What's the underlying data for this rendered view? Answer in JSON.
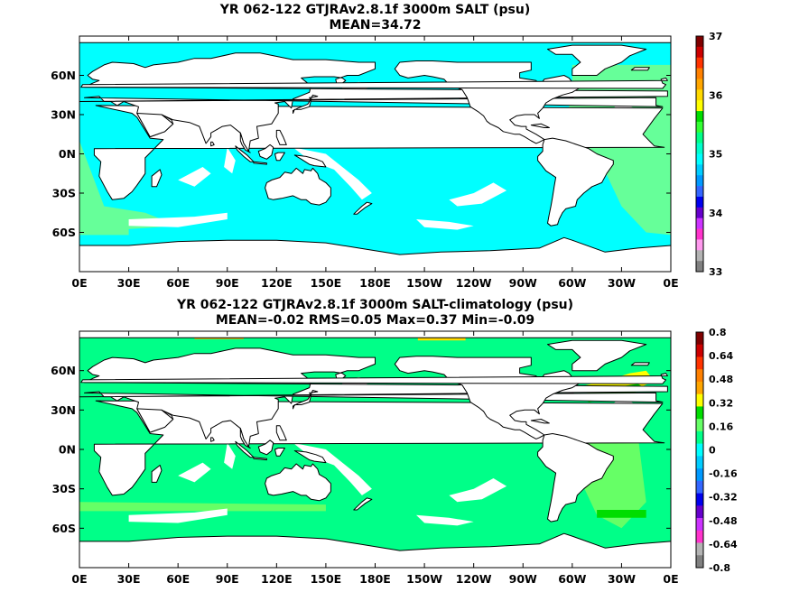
{
  "panels": [
    {
      "title_line1": "YR 062-122 GTJRAv2.8.1f 3000m SALT (psu)",
      "title_line2": "MEAN=34.72",
      "colorbar_labels": [
        "37",
        "36",
        "35",
        "34",
        "33"
      ],
      "colorbar_colors": [
        "#7f0000",
        "#cc0000",
        "#ff3300",
        "#ff8000",
        "#ffa600",
        "#ffd900",
        "#ffff00",
        "#00dd00",
        "#33ff33",
        "#00ff88",
        "#00ffcc",
        "#00ffff",
        "#00ccff",
        "#0099ff",
        "#3366ff",
        "#0000ee",
        "#6600cc",
        "#cc33ff",
        "#ff33cc",
        "#ff99ee",
        "#b3b3b3",
        "#808080"
      ]
    },
    {
      "title_line1": "YR 062-122 GTJRAv2.8.1f 3000m SALT-climatology (psu)",
      "title_line2": "MEAN=-0.02   RMS=0.05   Max=0.37   Min=-0.09",
      "colorbar_labels": [
        "0.8",
        "0.64",
        "0.48",
        "0.32",
        "0.16",
        "0",
        "-0.16",
        "-0.32",
        "-0.48",
        "-0.64",
        "-0.8"
      ],
      "colorbar_colors": [
        "#7f0000",
        "#cc0000",
        "#ff3300",
        "#ff8000",
        "#ffa600",
        "#ffff00",
        "#00dd00",
        "#66ff66",
        "#00ff88",
        "#00ffff",
        "#00ccff",
        "#0099ff",
        "#3366ff",
        "#0000ee",
        "#6600cc",
        "#cc33ff",
        "#ff33cc",
        "#b3b3b3",
        "#808080"
      ]
    }
  ],
  "x_ticks": [
    "0E",
    "30E",
    "60E",
    "90E",
    "120E",
    "150E",
    "180E",
    "150W",
    "120W",
    "90W",
    "60W",
    "30W",
    "0E"
  ],
  "y_ticks": [
    "60N",
    "30N",
    "0N",
    "30S",
    "60S"
  ],
  "colors": {
    "ocean_top": "#00ffff",
    "ocean_top_atlantic": "#66ff99",
    "ocean_bottom": "#00ff88",
    "ocean_bottom_high": "#66ff66",
    "land": "#ffffff",
    "coast": "#000000"
  }
}
